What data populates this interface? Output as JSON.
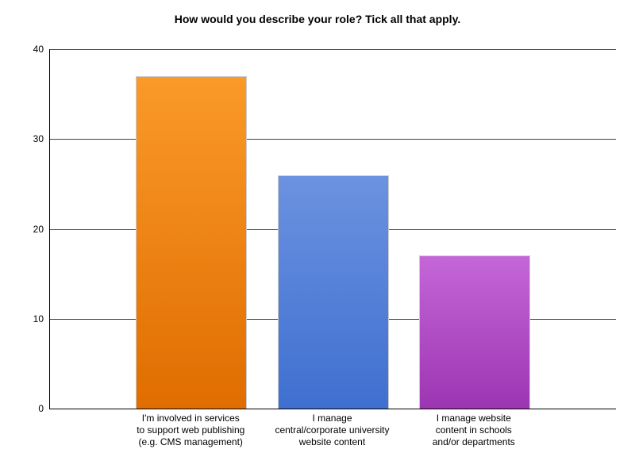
{
  "chart_data": {
    "type": "bar",
    "title": "How would you describe your role? Tick all that apply.",
    "categories": [
      "I'm involved in services\nto support web publishing\n(e.g. CMS management)",
      "I manage\ncentral/corporate university\nwebsite content",
      "I manage website\ncontent in schools\nand/or departments"
    ],
    "values": [
      37,
      26,
      17
    ],
    "bar_colors": [
      {
        "top": "#fa9a28",
        "bottom": "#e06d00"
      },
      {
        "top": "#6b92e0",
        "bottom": "#3f6fd0"
      },
      {
        "top": "#c466d8",
        "bottom": "#9d35b2"
      }
    ],
    "xlabel": "",
    "ylabel": "",
    "ylim": [
      0,
      40
    ],
    "yticks": [
      0,
      10,
      20,
      30,
      40
    ],
    "grid": true,
    "legend": "none",
    "background_color": "#ffffff",
    "gridline_color": "#404040",
    "bar_border_color": "#cccccc"
  }
}
